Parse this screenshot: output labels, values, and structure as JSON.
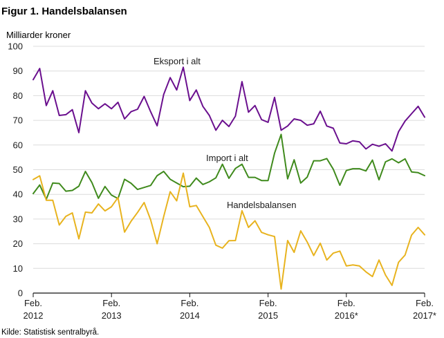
{
  "title": "Figur 1. Handelsbalansen",
  "y_unit_label": "Milliarder  kroner",
  "source": "Kilde: Statistisk sentralbyrå.",
  "chart_data": {
    "type": "line",
    "title": "Figur 1. Handelsbalansen",
    "ylabel": "Milliarder  kroner",
    "ylim": [
      0,
      100
    ],
    "yticks": [
      0,
      10,
      20,
      30,
      40,
      50,
      60,
      70,
      80,
      90,
      100
    ],
    "x": [
      "2012-02",
      "2012-03",
      "2012-04",
      "2012-05",
      "2012-06",
      "2012-07",
      "2012-08",
      "2012-09",
      "2012-10",
      "2012-11",
      "2012-12",
      "2013-01",
      "2013-02",
      "2013-03",
      "2013-04",
      "2013-05",
      "2013-06",
      "2013-07",
      "2013-08",
      "2013-09",
      "2013-10",
      "2013-11",
      "2013-12",
      "2014-01",
      "2014-02",
      "2014-03",
      "2014-04",
      "2014-05",
      "2014-06",
      "2014-07",
      "2014-08",
      "2014-09",
      "2014-10",
      "2014-11",
      "2014-12",
      "2015-01",
      "2015-02",
      "2015-03",
      "2015-04",
      "2015-05",
      "2015-06",
      "2015-07",
      "2015-08",
      "2015-09",
      "2015-10",
      "2015-11",
      "2015-12",
      "2016-01",
      "2016-02",
      "2016-03",
      "2016-04",
      "2016-05",
      "2016-06",
      "2016-07",
      "2016-08",
      "2016-09",
      "2016-10",
      "2016-11",
      "2016-12",
      "2017-01",
      "2017-02"
    ],
    "xticks": [
      {
        "value": "2012-02",
        "line1": "Feb.",
        "line2": "2012"
      },
      {
        "value": "2013-02",
        "line1": "Feb.",
        "line2": "2013"
      },
      {
        "value": "2014-02",
        "line1": "Feb.",
        "line2": "2014"
      },
      {
        "value": "2015-02",
        "line1": "Feb.",
        "line2": "2015"
      },
      {
        "value": "2016-02",
        "line1": "Feb.",
        "line2": "2016*"
      },
      {
        "value": "2017-02",
        "line1": "Feb.",
        "line2": "2017*"
      }
    ],
    "grid": true,
    "series": [
      {
        "name": "Eksport i alt",
        "color": "#6a0f8e",
        "values": [
          86.5,
          91,
          76,
          82,
          72,
          72.3,
          74.3,
          65,
          82,
          77,
          74.7,
          76.7,
          74.7,
          77.3,
          70.6,
          73.5,
          74.5,
          79.7,
          73.5,
          67.8,
          80.5,
          87.3,
          82.3,
          91.5,
          78,
          82.3,
          75.7,
          72,
          66,
          70,
          67.5,
          71.7,
          85.7,
          73.3,
          76,
          70.3,
          69.2,
          79.3,
          66,
          67.7,
          70.6,
          70,
          68,
          68.6,
          73.7,
          67.7,
          66.8,
          60.8,
          60.5,
          61.7,
          61.3,
          58.4,
          60.3,
          59.5,
          60.5,
          57.6,
          65.4,
          69.7,
          72.7,
          75.7,
          71.3
        ]
      },
      {
        "name": "Import i alt",
        "color": "#3f8a1c",
        "values": [
          40.3,
          43.8,
          38,
          44.6,
          44.4,
          41.3,
          41.6,
          43.3,
          49.3,
          44.8,
          38.4,
          43.2,
          39.7,
          38.3,
          46.1,
          44.5,
          42,
          42.8,
          43.6,
          47.6,
          49.3,
          46.1,
          44.6,
          43.1,
          43.3,
          46.6,
          44,
          45.1,
          46.7,
          52.2,
          46.5,
          50.5,
          52.2,
          46.9,
          46.9,
          45.6,
          45.6,
          56.7,
          64.3,
          46.3,
          54,
          44.6,
          47,
          53.6,
          53.6,
          54.5,
          50.2,
          43.7,
          49.7,
          50.4,
          50.4,
          49.5,
          53.9,
          45.9,
          53.2,
          54.4,
          52.8,
          54.4,
          49.1,
          48.8,
          47.6
        ]
      },
      {
        "name": "Handelsbalansen",
        "color": "#e8b31e",
        "values": [
          46,
          47.5,
          37.6,
          37.6,
          27.6,
          31.1,
          32.5,
          22,
          32.8,
          32.5,
          36.1,
          33.3,
          35,
          38.7,
          24.7,
          29.1,
          32.7,
          36.7,
          29.7,
          20,
          31,
          41.1,
          37.4,
          48.6,
          35,
          35.5,
          31,
          26.6,
          19.4,
          18.2,
          21.2,
          21.3,
          33.4,
          26.6,
          29.3,
          24.6,
          23.6,
          22.9,
          1.6,
          21.3,
          16.5,
          25.2,
          20.7,
          15.2,
          20.2,
          13.4,
          16.2,
          17,
          11,
          11.4,
          11,
          8.6,
          6.7,
          13.4,
          7.3,
          3.1,
          12.5,
          15.4,
          23.5,
          26.6,
          23.6
        ]
      }
    ]
  }
}
